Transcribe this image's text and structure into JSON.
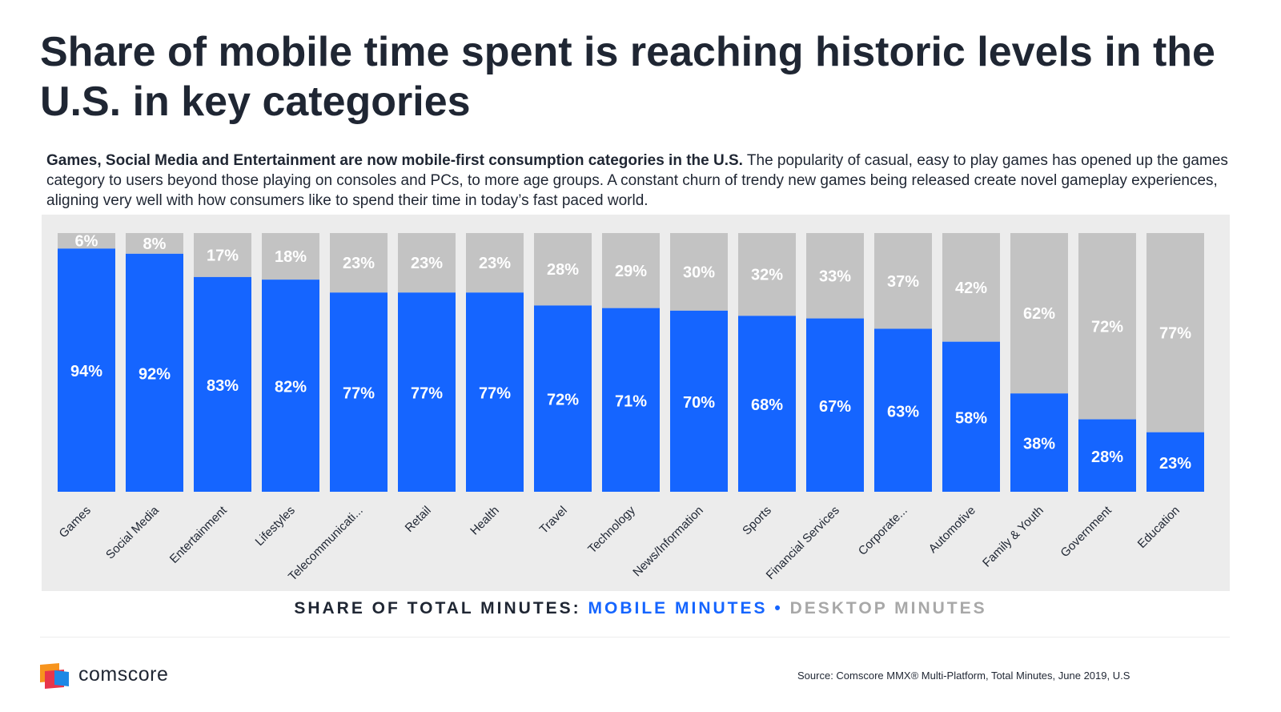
{
  "title": "Share of mobile time spent is reaching historic levels in the U.S. in key categories",
  "description": {
    "bold": "Games, Social Media and Entertainment are now mobile-first consumption categories in the U.S.",
    "rest": " The popularity of casual, easy to play games has opened up the games category to users beyond those playing on consoles and PCs, to more age groups. A constant churn of trendy new games being released create novel gameplay experiences, aligning very well with how consumers like to spend their time in today’s fast paced world."
  },
  "legend": {
    "lead": "SHARE OF TOTAL MINUTES:",
    "mobile": "MOBILE MINUTES",
    "separator": "•",
    "desktop": "DESKTOP MINUTES"
  },
  "footer": {
    "brand": "comscore",
    "source": "Source: Comscore MMX® Multi-Platform, Total Minutes, June 2019, U.S"
  },
  "colors": {
    "mobile": "#1565ff",
    "desktop": "#c3c3c3",
    "panel": "#ececec",
    "logo_orange": "#f7941d",
    "logo_red": "#e8364b",
    "logo_blue": "#1e88e5"
  },
  "chart_data": {
    "type": "bar",
    "stacked": true,
    "categories": [
      "Games",
      "Social Media",
      "Entertainment",
      "Lifestyles",
      "Telecommunicati...",
      "Retail",
      "Health",
      "Travel",
      "Technology",
      "News/Information",
      "Sports",
      "Financial Services",
      "Corporate...",
      "Automotive",
      "Family & Youth",
      "Government",
      "Education"
    ],
    "series": [
      {
        "name": "MOBILE MINUTES",
        "values": [
          94,
          92,
          83,
          82,
          77,
          77,
          77,
          72,
          71,
          70,
          68,
          67,
          63,
          58,
          38,
          28,
          23
        ]
      },
      {
        "name": "DESKTOP MINUTES",
        "values": [
          6,
          8,
          17,
          18,
          23,
          23,
          23,
          28,
          29,
          30,
          32,
          33,
          37,
          42,
          62,
          72,
          77
        ]
      }
    ],
    "unit": "%",
    "ylim": [
      0,
      100
    ],
    "grid": false,
    "legend_position": "bottom"
  }
}
